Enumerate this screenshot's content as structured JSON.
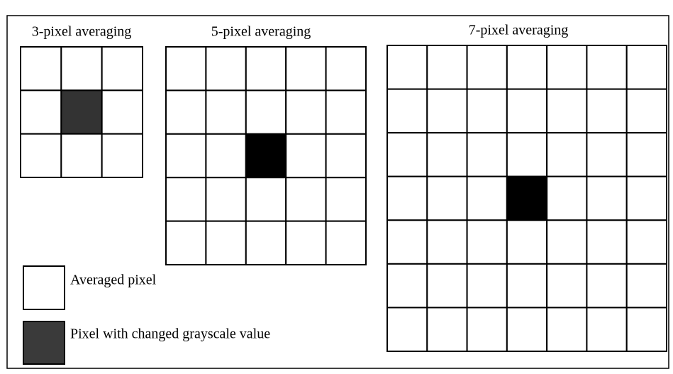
{
  "grids": [
    {
      "title": "3-pixel averaging"
    },
    {
      "title": "5-pixel averaging"
    },
    {
      "title": "7-pixel averaging"
    }
  ],
  "legend": [
    {
      "label": "Averaged pixel"
    },
    {
      "label": "Pixel with changed grayscale value"
    }
  ]
}
